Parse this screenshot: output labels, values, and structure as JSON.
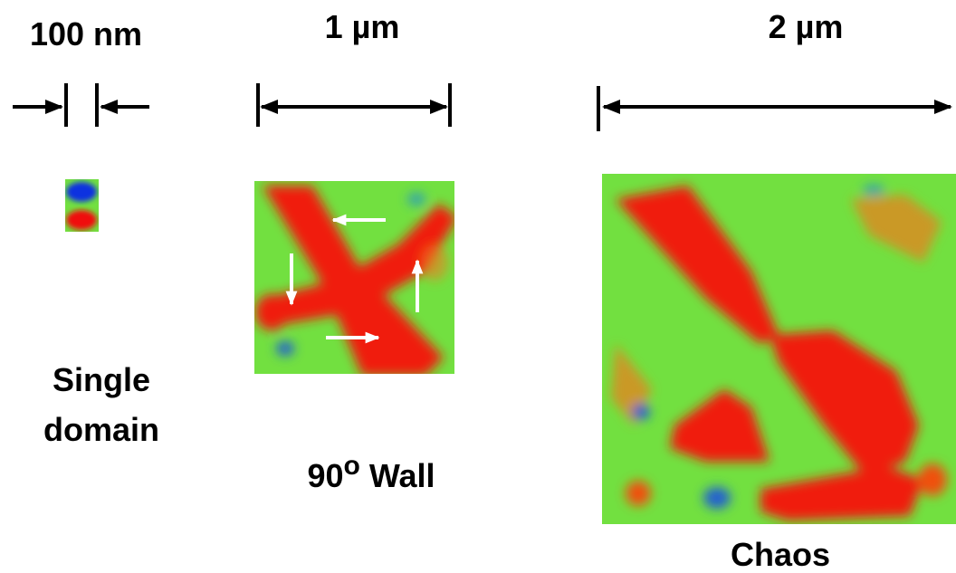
{
  "labels": {
    "scale_small": "100 nm",
    "scale_medium": "1 µm",
    "scale_large": "2 µm",
    "single_domain": [
      "Single",
      "domain"
    ],
    "wall": {
      "number": "90",
      "superscript": "o",
      "text": "Wall"
    },
    "chaos": "Chaos"
  }
}
